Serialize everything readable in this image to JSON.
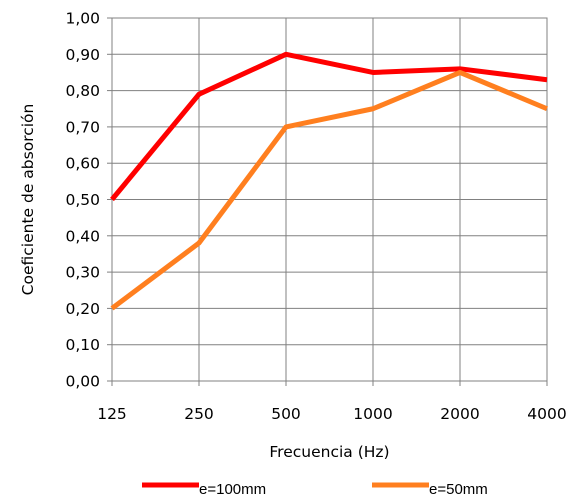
{
  "chart_data": {
    "type": "line",
    "xlabel": "Frecuencia (Hz)",
    "ylabel": "Coeficiente de absorción",
    "categories": [
      "125",
      "250",
      "500",
      "1000",
      "2000",
      "4000"
    ],
    "ylim": [
      0,
      1
    ],
    "y_ticks": [
      "0,00",
      "0,10",
      "0,20",
      "0,30",
      "0,40",
      "0,50",
      "0,60",
      "0,70",
      "0,80",
      "0,90",
      "1,00"
    ],
    "grid": true,
    "legend_position": "bottom",
    "series": [
      {
        "name": "e=100mm",
        "color": "#ff0000",
        "values": [
          0.5,
          0.79,
          0.9,
          0.85,
          0.86,
          0.83
        ]
      },
      {
        "name": "e=50mm",
        "color": "#ff7f1f",
        "values": [
          0.2,
          0.38,
          0.7,
          0.75,
          0.85,
          0.75
        ]
      }
    ]
  }
}
